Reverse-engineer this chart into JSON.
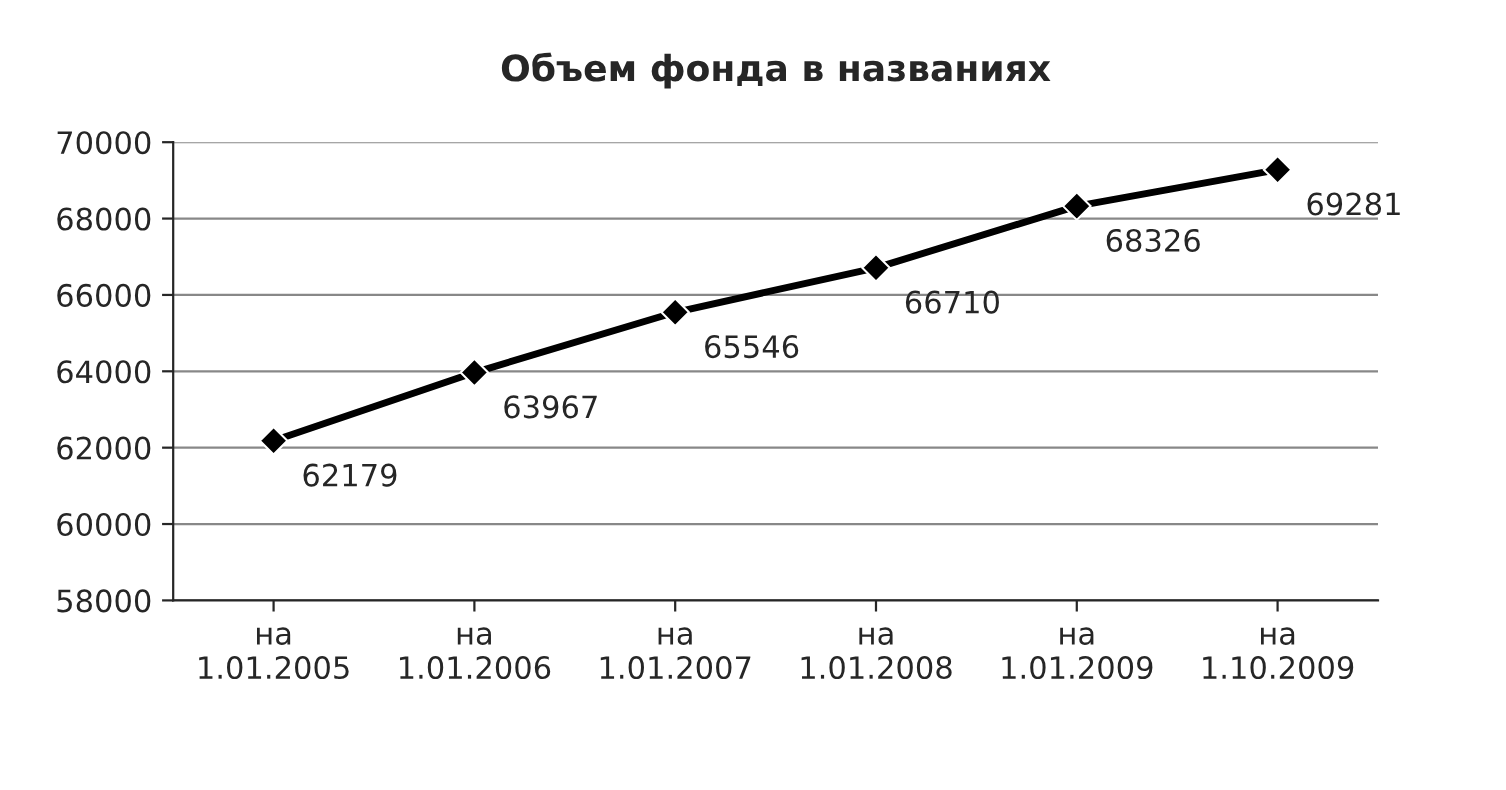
{
  "chart_data": {
    "type": "line",
    "title": "Объем фонда в названиях",
    "categories": [
      "на\n1.01.2005",
      "на\n1.01.2006",
      "на\n1.01.2007",
      "на\n1.01.2008",
      "на\n1.01.2009",
      "на\n1.10.2009"
    ],
    "series": [
      {
        "color": "#000000",
        "values": [
          62179,
          63967,
          65546,
          66710,
          68326,
          69281
        ]
      }
    ],
    "ylim": [
      58000,
      70000
    ],
    "yticks": [
      58000,
      60000,
      62000,
      64000,
      66000,
      68000,
      70000
    ],
    "grid": "y",
    "marker": "diamond",
    "line_style": "solid",
    "data_labels": true
  }
}
